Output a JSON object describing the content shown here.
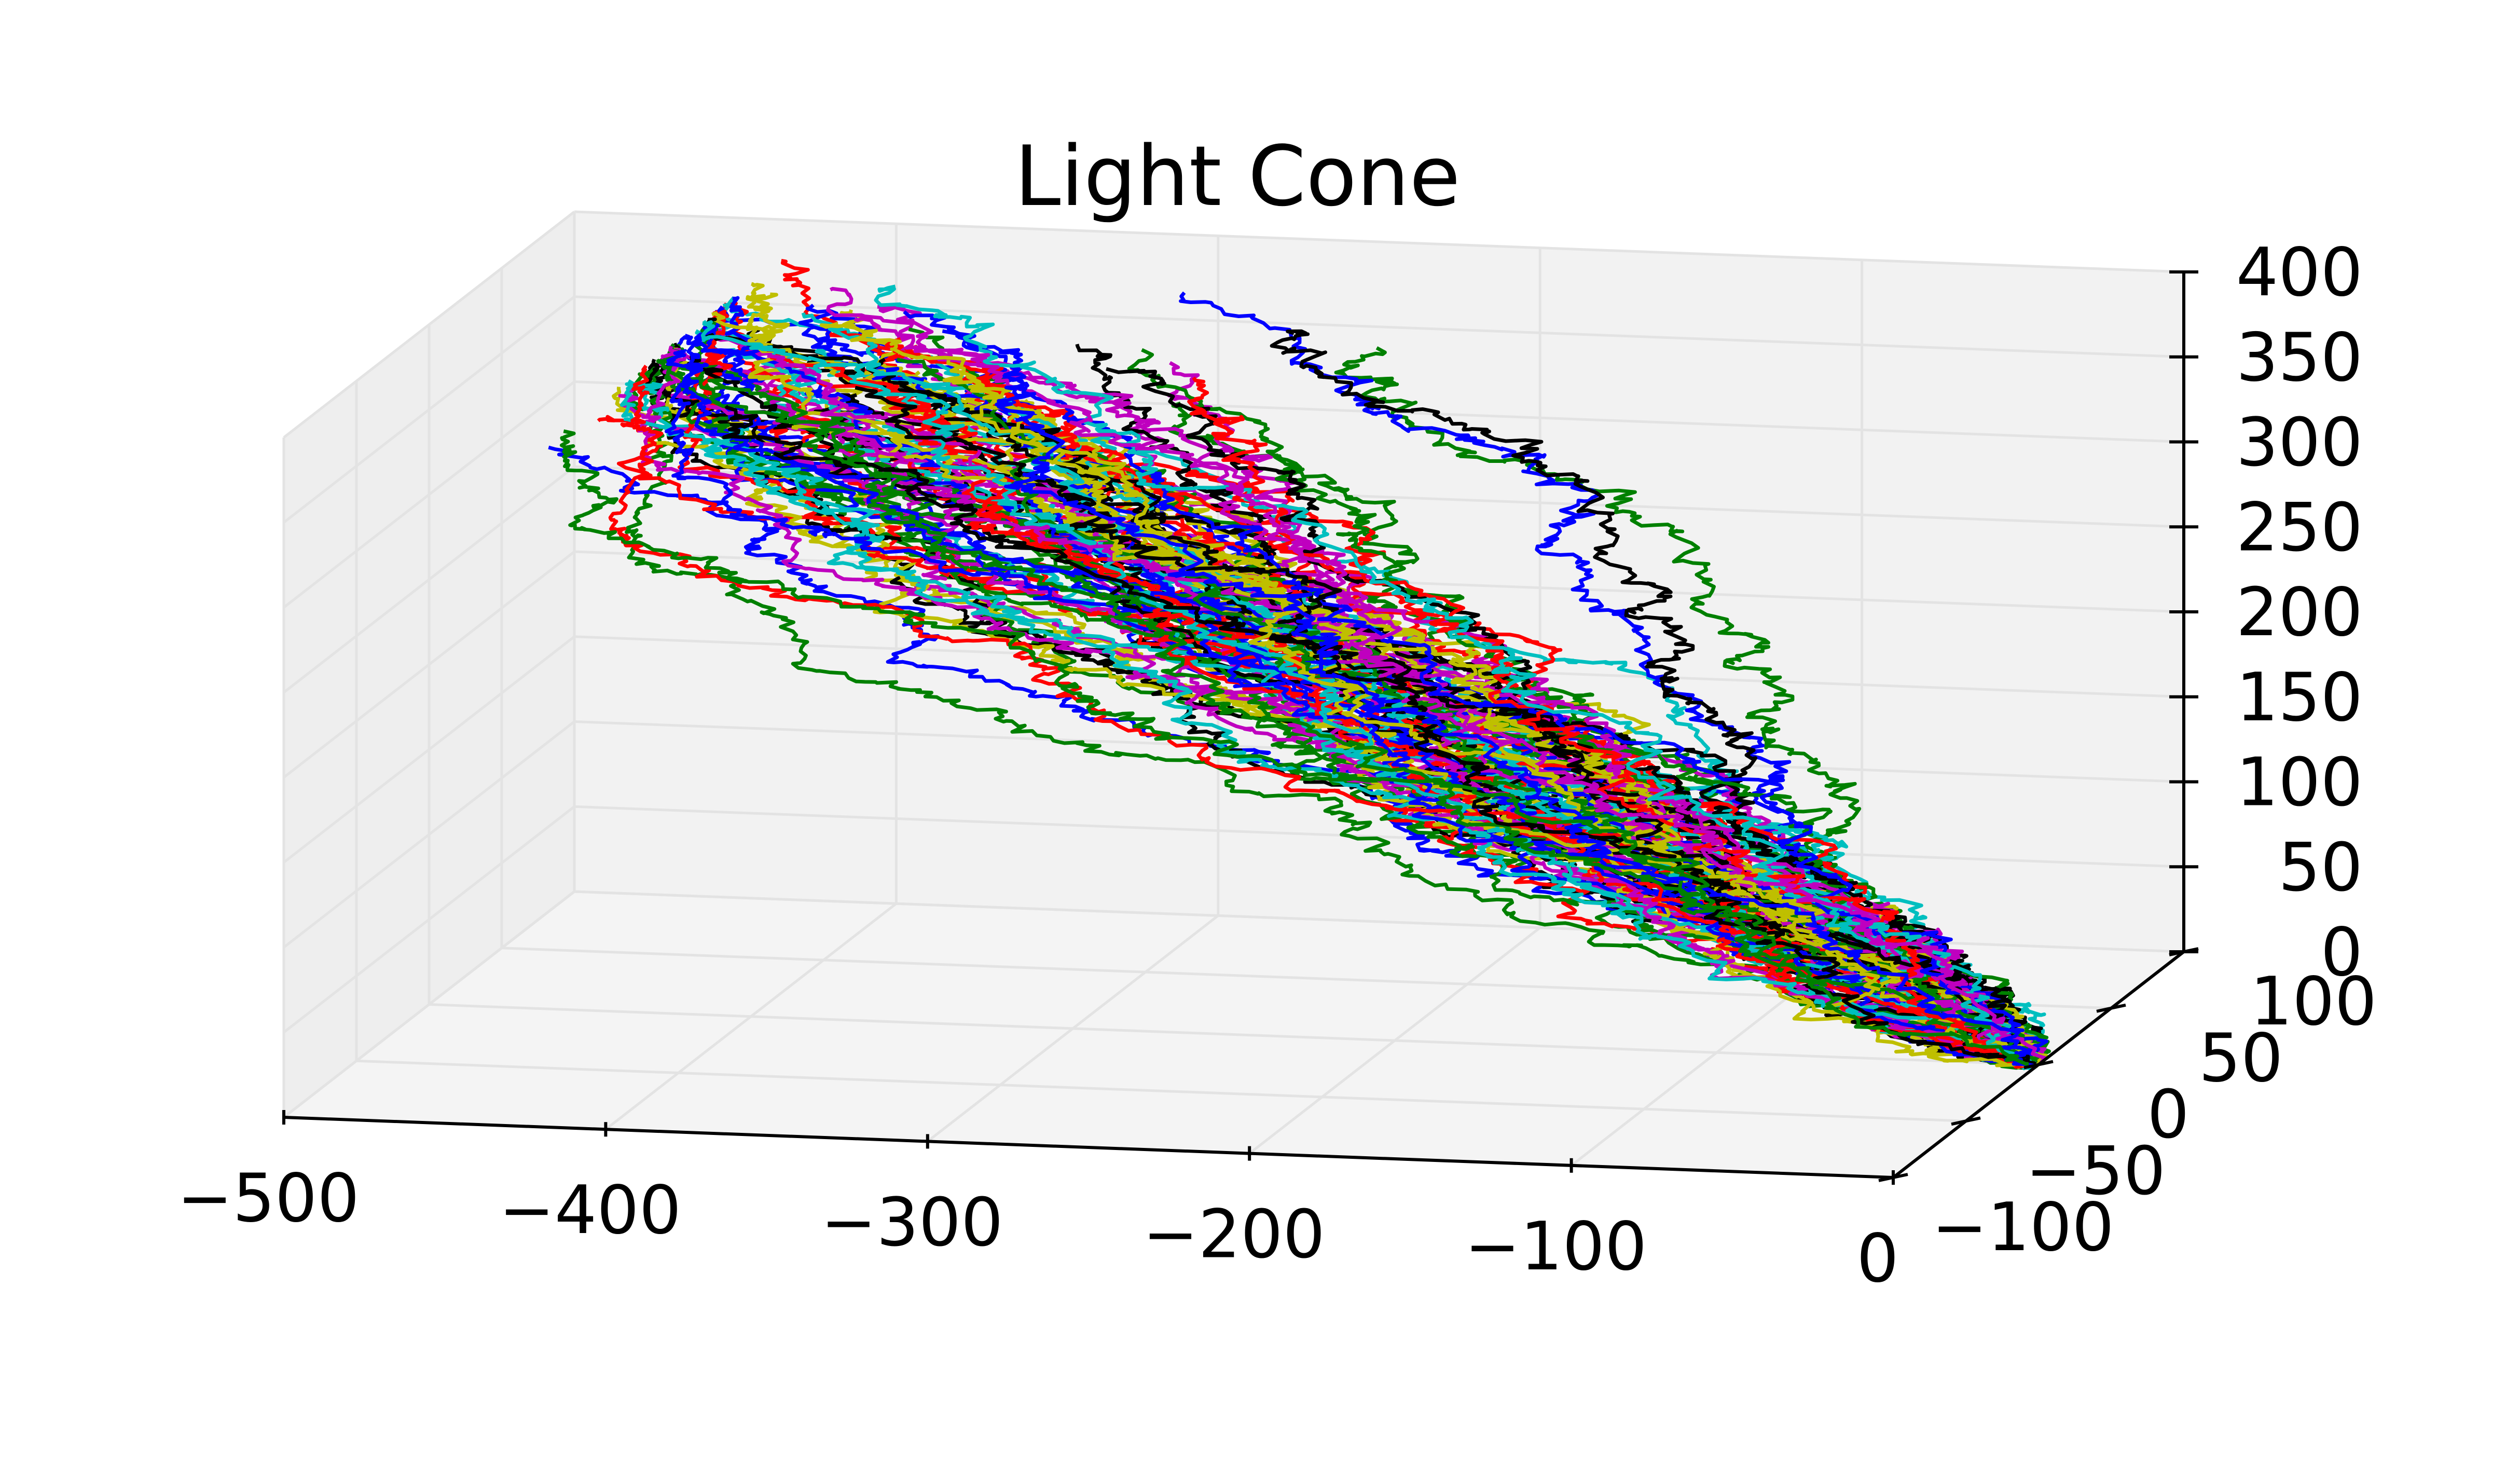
{
  "chart_data": {
    "type": "line",
    "projection": "3d",
    "title": "Light Cone",
    "xlabel": "",
    "ylabel": "",
    "zlabel": "",
    "x_ticks": [
      "−500",
      "−400",
      "−300",
      "−200",
      "−100",
      "0"
    ],
    "y_ticks": [
      "−100",
      "−50",
      "0",
      "50",
      "100"
    ],
    "z_ticks": [
      "0",
      "50",
      "100",
      "150",
      "200",
      "250",
      "300",
      "350",
      "400"
    ],
    "xlim": [
      -500,
      0
    ],
    "ylim": [
      -100,
      100
    ],
    "zlim": [
      0,
      400
    ],
    "grid": true,
    "pane_color": "#f2f2f2",
    "series_colors": [
      "#0000ff",
      "#008000",
      "#ff0000",
      "#00bfbf",
      "#bf00bf",
      "#bfbf00",
      "#000000"
    ],
    "description_values": {
      "walk_count": 100,
      "walk_steps": 400,
      "x_extent_data": [
        -420,
        0
      ],
      "y_extent_data": [
        -100,
        100
      ],
      "z_extent_data": [
        0,
        400
      ]
    }
  }
}
